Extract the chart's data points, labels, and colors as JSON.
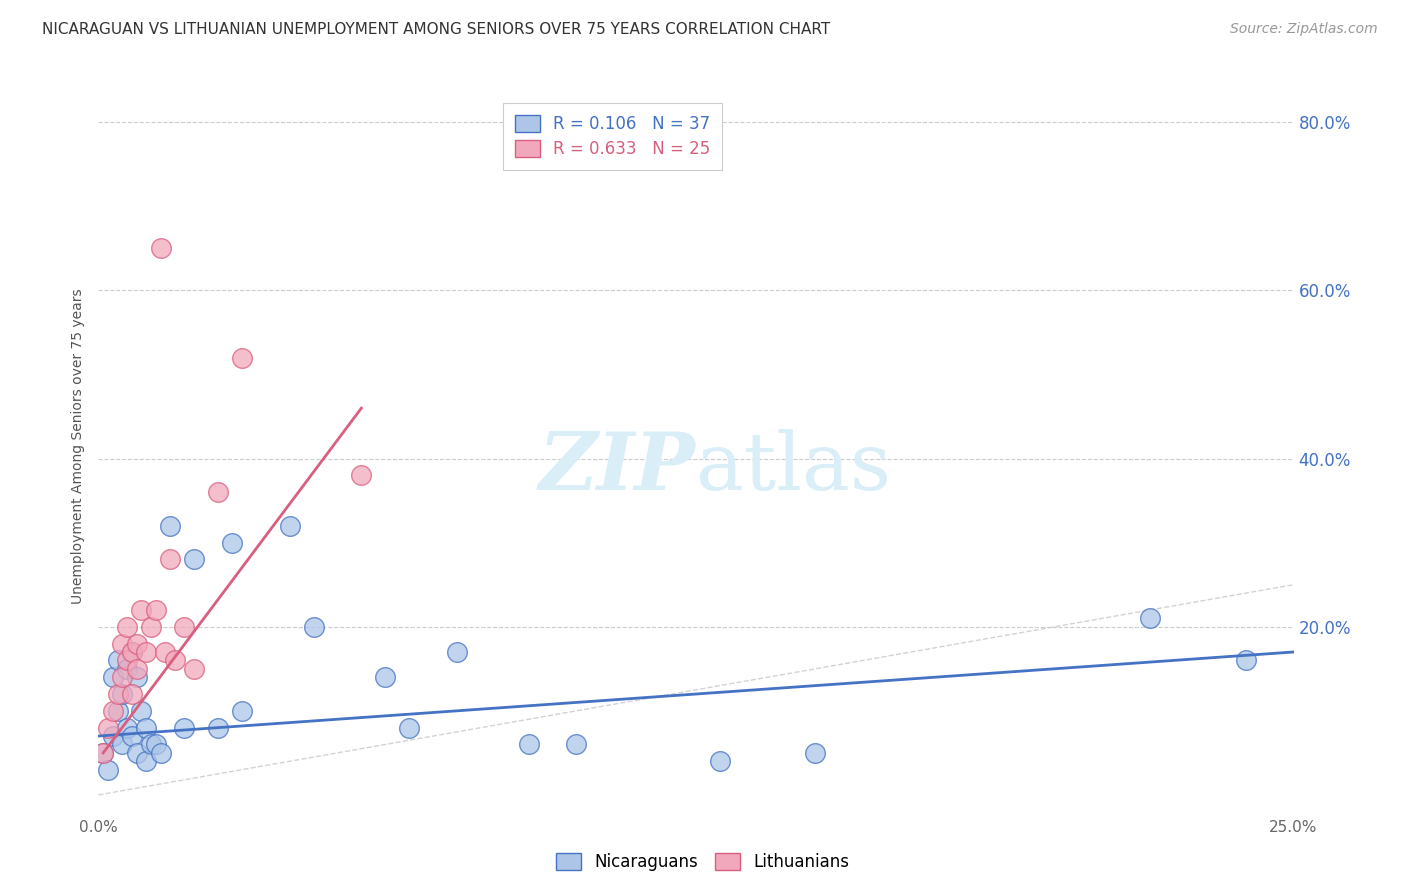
{
  "title": "NICARAGUAN VS LITHUANIAN UNEMPLOYMENT AMONG SENIORS OVER 75 YEARS CORRELATION CHART",
  "source": "Source: ZipAtlas.com",
  "ylabel": "Unemployment Among Seniors over 75 years",
  "nicaraguan_color": "#adc6e8",
  "lithuanian_color": "#f2a8bc",
  "nicaraguan_line_color": "#4472c4",
  "lithuanian_line_color": "#d95f7f",
  "diagonal_color": "#c8c8c8",
  "watermark_color": "#daeef8",
  "xlim": [
    0.0,
    0.25
  ],
  "ylim": [
    -0.02,
    0.85
  ],
  "ytick_vals": [
    0.2,
    0.4,
    0.6,
    0.8
  ],
  "ytick_labels": [
    "20.0%",
    "40.0%",
    "60.0%",
    "80.0%"
  ],
  "xtick_vals": [
    0.0,
    0.25
  ],
  "xtick_labels": [
    "0.0%",
    "25.0%"
  ],
  "nic_R": "0.106",
  "nic_N": "37",
  "lit_R": "0.633",
  "lit_N": "25",
  "nicaraguan_x": [
    0.001,
    0.002,
    0.003,
    0.003,
    0.004,
    0.004,
    0.005,
    0.005,
    0.006,
    0.006,
    0.007,
    0.007,
    0.008,
    0.008,
    0.009,
    0.01,
    0.01,
    0.011,
    0.012,
    0.013,
    0.015,
    0.018,
    0.02,
    0.025,
    0.028,
    0.03,
    0.04,
    0.045,
    0.06,
    0.065,
    0.075,
    0.09,
    0.1,
    0.13,
    0.15,
    0.22,
    0.24
  ],
  "nicaraguan_y": [
    0.05,
    0.03,
    0.14,
    0.07,
    0.16,
    0.1,
    0.12,
    0.06,
    0.15,
    0.08,
    0.17,
    0.07,
    0.14,
    0.05,
    0.1,
    0.08,
    0.04,
    0.06,
    0.06,
    0.05,
    0.32,
    0.08,
    0.28,
    0.08,
    0.3,
    0.1,
    0.32,
    0.2,
    0.14,
    0.08,
    0.17,
    0.06,
    0.06,
    0.04,
    0.05,
    0.21,
    0.16
  ],
  "lithuanian_x": [
    0.001,
    0.002,
    0.003,
    0.004,
    0.005,
    0.005,
    0.006,
    0.006,
    0.007,
    0.007,
    0.008,
    0.008,
    0.009,
    0.01,
    0.011,
    0.012,
    0.013,
    0.014,
    0.015,
    0.016,
    0.018,
    0.02,
    0.025,
    0.03,
    0.055
  ],
  "lithuanian_y": [
    0.05,
    0.08,
    0.1,
    0.12,
    0.14,
    0.18,
    0.16,
    0.2,
    0.12,
    0.17,
    0.15,
    0.18,
    0.22,
    0.17,
    0.2,
    0.22,
    0.65,
    0.17,
    0.28,
    0.16,
    0.2,
    0.15,
    0.36,
    0.52,
    0.38
  ],
  "nic_line_x": [
    0.0,
    0.25
  ],
  "nic_line_y": [
    0.07,
    0.17
  ],
  "lit_line_x": [
    0.001,
    0.055
  ],
  "lit_line_y": [
    0.05,
    0.46
  ]
}
